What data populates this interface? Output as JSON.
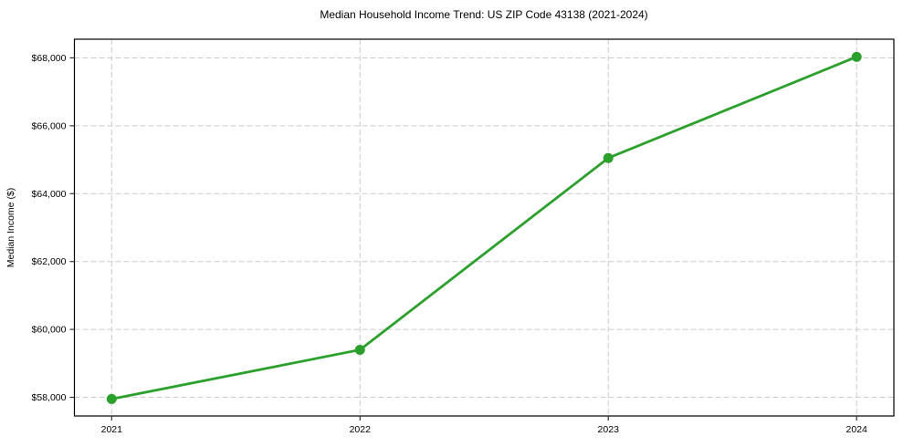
{
  "page": {
    "background": "#ffffff"
  },
  "chart_data": {
    "type": "line",
    "title": "Median Household Income Trend: US ZIP Code 43138 (2021-2024)",
    "xlabel": "",
    "ylabel": "Median Income ($)",
    "x": [
      2021,
      2022,
      2023,
      2024
    ],
    "x_tick_labels": [
      "2021",
      "2022",
      "2023",
      "2024"
    ],
    "values": [
      57950,
      59400,
      65050,
      68030
    ],
    "y_ticks": [
      58000,
      60000,
      62000,
      64000,
      66000,
      68000
    ],
    "y_tick_labels": [
      "$58,000",
      "$60,000",
      "$62,000",
      "$64,000",
      "$66,000",
      "$68,000"
    ],
    "xlim": [
      2020.85,
      2024.15
    ],
    "ylim": [
      57450,
      68550
    ],
    "grid": true,
    "grid_style": "dashed",
    "legend_position": "none",
    "line_color": "#2ca02c",
    "marker_color": "#2ca02c",
    "marker_shape": "circle",
    "grid_color": "#cccccc",
    "spine_color": "#000000",
    "tick_color": "#333333",
    "text_color": "#000000"
  }
}
